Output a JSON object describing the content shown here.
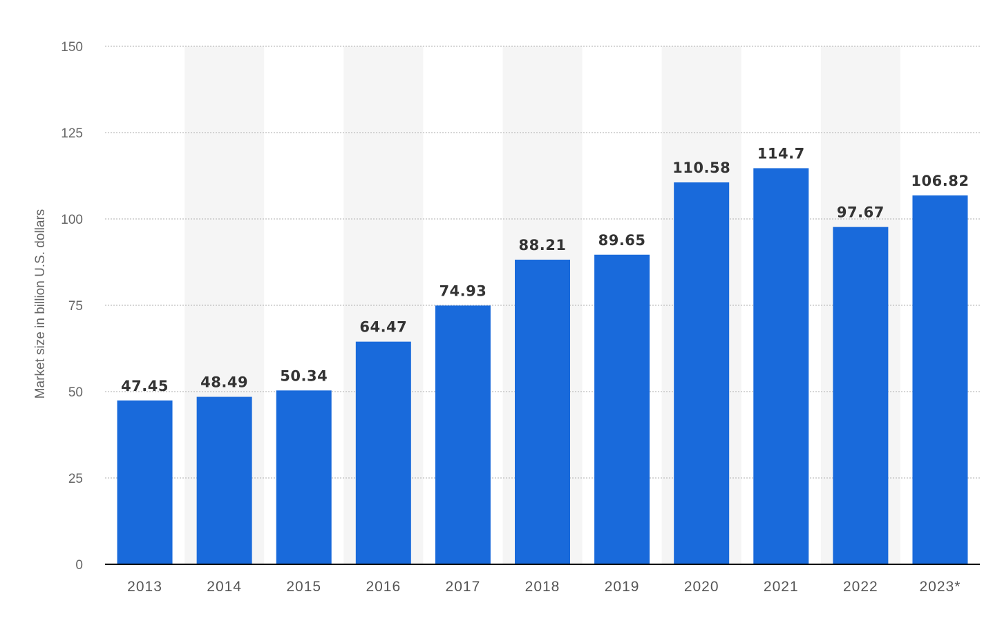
{
  "chart_data": {
    "type": "bar",
    "categories": [
      "2013",
      "2014",
      "2015",
      "2016",
      "2017",
      "2018",
      "2019",
      "2020",
      "2021",
      "2022",
      "2023*"
    ],
    "values": [
      47.45,
      48.49,
      50.34,
      64.47,
      74.93,
      88.21,
      89.65,
      110.58,
      114.7,
      97.67,
      106.82
    ],
    "value_labels": [
      "47.45",
      "48.49",
      "50.34",
      "64.47",
      "74.93",
      "88.21",
      "89.65",
      "110.58",
      "114.7",
      "97.67",
      "106.82"
    ],
    "title": "",
    "xlabel": "",
    "ylabel": "Market size in billion U.S. dollars",
    "ylim": [
      0,
      150
    ],
    "yticks": [
      0,
      25,
      50,
      75,
      100,
      125,
      150
    ],
    "grid": true,
    "legend": "none",
    "colors": {
      "bar": "#196ADB",
      "alt_column_band": "#F5F5F5",
      "grid": "#BDBDBD",
      "axis": "#000000"
    }
  }
}
